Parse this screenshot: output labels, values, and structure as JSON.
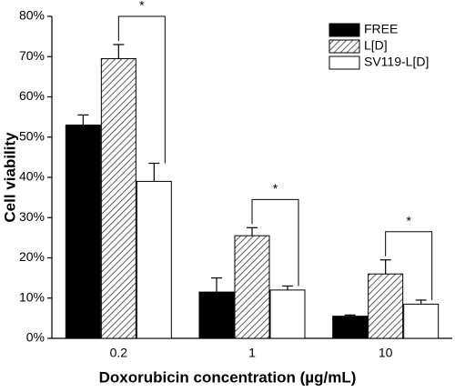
{
  "chart_data": {
    "type": "bar",
    "x_label": "Doxorubicin concentration (µg/mL)",
    "y_label": "Cell viability",
    "categories": [
      "0.2",
      "1",
      "10"
    ],
    "series": [
      {
        "name": "FREE",
        "color": "#000000",
        "pattern": "solid",
        "values": [
          53,
          11.5,
          5.5
        ],
        "errors": [
          2.5,
          3.5,
          0.3
        ]
      },
      {
        "name": "L[D]",
        "color": "#ffffff",
        "pattern": "hatch",
        "values": [
          69.5,
          25.5,
          16
        ],
        "errors": [
          3.5,
          2,
          3.5
        ]
      },
      {
        "name": "SV119-L[D]",
        "color": "#ffffff",
        "pattern": "solid",
        "values": [
          39,
          12,
          8.5
        ],
        "errors": [
          4.5,
          1,
          1
        ]
      }
    ],
    "annotations": [
      "*",
      "*",
      "*"
    ],
    "ylim": [
      0,
      80
    ],
    "yticks": [
      {
        "value": 0,
        "label": "0%"
      },
      {
        "value": 10,
        "label": "10%"
      },
      {
        "value": 20,
        "label": "20%"
      },
      {
        "value": 30,
        "label": "30%"
      },
      {
        "value": 40,
        "label": "40%"
      },
      {
        "value": 50,
        "label": "50%"
      },
      {
        "value": 60,
        "label": "60%"
      },
      {
        "value": 70,
        "label": "70%"
      },
      {
        "value": 80,
        "label": "80%"
      }
    ],
    "legend_position": "upper right"
  }
}
